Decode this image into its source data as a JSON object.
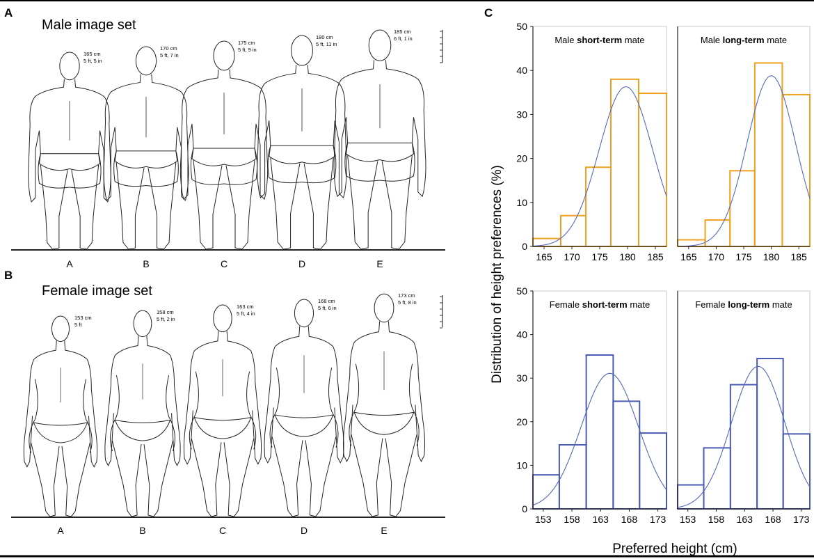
{
  "panels": {
    "a_letter": "A",
    "b_letter": "B",
    "c_letter": "C"
  },
  "male_set": {
    "title": "Male image set",
    "figures": [
      {
        "letter": "A",
        "cm": "165 cm",
        "ft": "5 ft, 5 in",
        "height": 165
      },
      {
        "letter": "B",
        "cm": "170 cm",
        "ft": "5 ft, 7 in",
        "height": 170
      },
      {
        "letter": "C",
        "cm": "175 cm",
        "ft": "5 ft, 9 in",
        "height": 175
      },
      {
        "letter": "D",
        "cm": "180 cm",
        "ft": "5 ft, 11 in",
        "height": 180
      },
      {
        "letter": "E",
        "cm": "185 cm",
        "ft": "6 ft, 1 in",
        "height": 185
      }
    ]
  },
  "female_set": {
    "title": "Female image set",
    "figures": [
      {
        "letter": "A",
        "cm": "153 cm",
        "ft": "5 ft",
        "height": 153
      },
      {
        "letter": "B",
        "cm": "158 cm",
        "ft": "5 ft, 2 in",
        "height": 158
      },
      {
        "letter": "C",
        "cm": "163 cm",
        "ft": "5 ft, 4 in",
        "height": 163
      },
      {
        "letter": "D",
        "cm": "168 cm",
        "ft": "5 ft, 6 in",
        "height": 168
      },
      {
        "letter": "E",
        "cm": "173 cm",
        "ft": "5 ft, 8 in",
        "height": 173
      }
    ]
  },
  "colors": {
    "male_bar": "#f0a020",
    "female_bar": "#4a5bb5",
    "curve": "#5468b8",
    "axis": "#222222"
  },
  "chart_data": [
    {
      "type": "bar",
      "id": "male-short",
      "title_prefix": "Male ",
      "title_bold": "short-term",
      "title_suffix": " mate",
      "bins": [
        {
          "from": 163.0,
          "to": 168.0,
          "value": 1.8
        },
        {
          "from": 168.0,
          "to": 172.5,
          "value": 7.0
        },
        {
          "from": 172.5,
          "to": 177.0,
          "value": 18.0
        },
        {
          "from": 177.0,
          "to": 182.0,
          "value": 38.0
        },
        {
          "from": 182.0,
          "to": 187.0,
          "value": 34.8
        }
      ],
      "fit": {
        "mean": 179.7,
        "sd": 4.8,
        "peak": 36.3
      },
      "xlim": [
        163.0,
        187.0
      ],
      "ylim": [
        0,
        50
      ],
      "xticks": [
        165,
        170,
        175,
        180,
        185
      ],
      "yticks": [
        0,
        10,
        20,
        30,
        40,
        50
      ],
      "show_yticks": true
    },
    {
      "type": "bar",
      "id": "male-long",
      "title_prefix": "Male ",
      "title_bold": "long-term",
      "title_suffix": " mate",
      "bins": [
        {
          "from": 163.0,
          "to": 168.0,
          "value": 1.5
        },
        {
          "from": 168.0,
          "to": 172.5,
          "value": 6.0
        },
        {
          "from": 172.5,
          "to": 177.0,
          "value": 17.2
        },
        {
          "from": 177.0,
          "to": 182.0,
          "value": 41.7
        },
        {
          "from": 182.0,
          "to": 187.0,
          "value": 34.5
        }
      ],
      "fit": {
        "mean": 180.0,
        "sd": 4.4,
        "peak": 38.8
      },
      "xlim": [
        163.0,
        187.0
      ],
      "ylim": [
        0,
        50
      ],
      "xticks": [
        165,
        170,
        175,
        180,
        185
      ],
      "yticks": [
        0,
        10,
        20,
        30,
        40,
        50
      ],
      "show_yticks": false
    },
    {
      "type": "bar",
      "id": "female-short",
      "title_prefix": "Female ",
      "title_bold": "short-term",
      "title_suffix": " mate",
      "bins": [
        {
          "from": 151.2,
          "to": 155.8,
          "value": 7.8
        },
        {
          "from": 155.8,
          "to": 160.5,
          "value": 14.7
        },
        {
          "from": 160.5,
          "to": 165.2,
          "value": 35.3
        },
        {
          "from": 165.2,
          "to": 169.8,
          "value": 24.7
        },
        {
          "from": 169.8,
          "to": 174.5,
          "value": 17.4
        }
      ],
      "fit": {
        "mean": 164.6,
        "sd": 5.0,
        "peak": 31.1
      },
      "xlim": [
        151.2,
        174.5
      ],
      "ylim": [
        0,
        50
      ],
      "xticks": [
        153,
        158,
        163,
        168,
        173
      ],
      "yticks": [
        0,
        10,
        20,
        30,
        40,
        50
      ],
      "show_yticks": true
    },
    {
      "type": "bar",
      "id": "female-long",
      "title_prefix": "Female ",
      "title_bold": "long-term",
      "title_suffix": " mate",
      "bins": [
        {
          "from": 151.2,
          "to": 155.8,
          "value": 5.5
        },
        {
          "from": 155.8,
          "to": 160.5,
          "value": 14.0
        },
        {
          "from": 160.5,
          "to": 165.2,
          "value": 28.5
        },
        {
          "from": 165.2,
          "to": 169.8,
          "value": 34.5
        },
        {
          "from": 169.8,
          "to": 174.5,
          "value": 17.2
        }
      ],
      "fit": {
        "mean": 165.4,
        "sd": 4.7,
        "peak": 32.7
      },
      "xlim": [
        151.2,
        174.5
      ],
      "ylim": [
        0,
        50
      ],
      "xticks": [
        153,
        158,
        163,
        168,
        173
      ],
      "yticks": [
        0,
        10,
        20,
        30,
        40,
        50
      ],
      "show_yticks": false
    }
  ],
  "axes": {
    "ylabel": "Distribution of height preferences (%)",
    "xlabel": "Preferred height (cm)"
  }
}
